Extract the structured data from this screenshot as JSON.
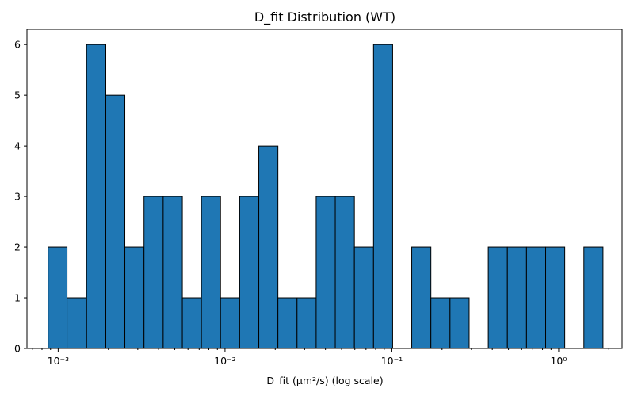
{
  "chart_data": {
    "type": "bar",
    "title": "D_fit Distribution (WT)",
    "xlabel": "D_fit (μm²/s) (log scale)",
    "ylabel": "",
    "x_scale": "log",
    "xlim": [
      0.00065,
      2.4
    ],
    "ylim": [
      0,
      6.3
    ],
    "grid": false,
    "colors": {
      "bar_fill": "#1f77b4",
      "bar_edge": "#000000"
    },
    "x_ticks": [
      {
        "value": 0.001,
        "label": "10⁻³"
      },
      {
        "value": 0.01,
        "label": "10⁻²"
      },
      {
        "value": 0.1,
        "label": "10⁻¹"
      },
      {
        "value": 1,
        "label": "10⁰"
      }
    ],
    "y_ticks": [
      0,
      1,
      2,
      3,
      4,
      5,
      6
    ],
    "bins": [
      {
        "left": 0.00087,
        "right": 0.00113,
        "count": 2
      },
      {
        "left": 0.00113,
        "right": 0.00148,
        "count": 1
      },
      {
        "left": 0.00148,
        "right": 0.00193,
        "count": 6
      },
      {
        "left": 0.00193,
        "right": 0.00251,
        "count": 5
      },
      {
        "left": 0.00251,
        "right": 0.00327,
        "count": 2
      },
      {
        "left": 0.00327,
        "right": 0.00426,
        "count": 3
      },
      {
        "left": 0.00426,
        "right": 0.00555,
        "count": 3
      },
      {
        "left": 0.00555,
        "right": 0.00722,
        "count": 1
      },
      {
        "left": 0.00722,
        "right": 0.0094,
        "count": 3
      },
      {
        "left": 0.0094,
        "right": 0.01224,
        "count": 1
      },
      {
        "left": 0.01224,
        "right": 0.01594,
        "count": 3
      },
      {
        "left": 0.01594,
        "right": 0.02075,
        "count": 4
      },
      {
        "left": 0.02075,
        "right": 0.02702,
        "count": 1
      },
      {
        "left": 0.02702,
        "right": 0.03518,
        "count": 1
      },
      {
        "left": 0.03518,
        "right": 0.0458,
        "count": 3
      },
      {
        "left": 0.0458,
        "right": 0.05964,
        "count": 3
      },
      {
        "left": 0.05964,
        "right": 0.07765,
        "count": 2
      },
      {
        "left": 0.07765,
        "right": 0.1011,
        "count": 6
      },
      {
        "left": 0.1011,
        "right": 0.1316,
        "count": 0
      },
      {
        "left": 0.1316,
        "right": 0.1714,
        "count": 2
      },
      {
        "left": 0.1714,
        "right": 0.2232,
        "count": 1
      },
      {
        "left": 0.2232,
        "right": 0.2906,
        "count": 1
      },
      {
        "left": 0.2906,
        "right": 0.3784,
        "count": 0
      },
      {
        "left": 0.3784,
        "right": 0.4927,
        "count": 2
      },
      {
        "left": 0.4927,
        "right": 0.6416,
        "count": 2
      },
      {
        "left": 0.6416,
        "right": 0.8354,
        "count": 2
      },
      {
        "left": 0.8354,
        "right": 1.0877,
        "count": 2
      },
      {
        "left": 1.0877,
        "right": 1.4163,
        "count": 0
      },
      {
        "left": 1.4163,
        "right": 1.8441,
        "count": 2
      }
    ]
  }
}
